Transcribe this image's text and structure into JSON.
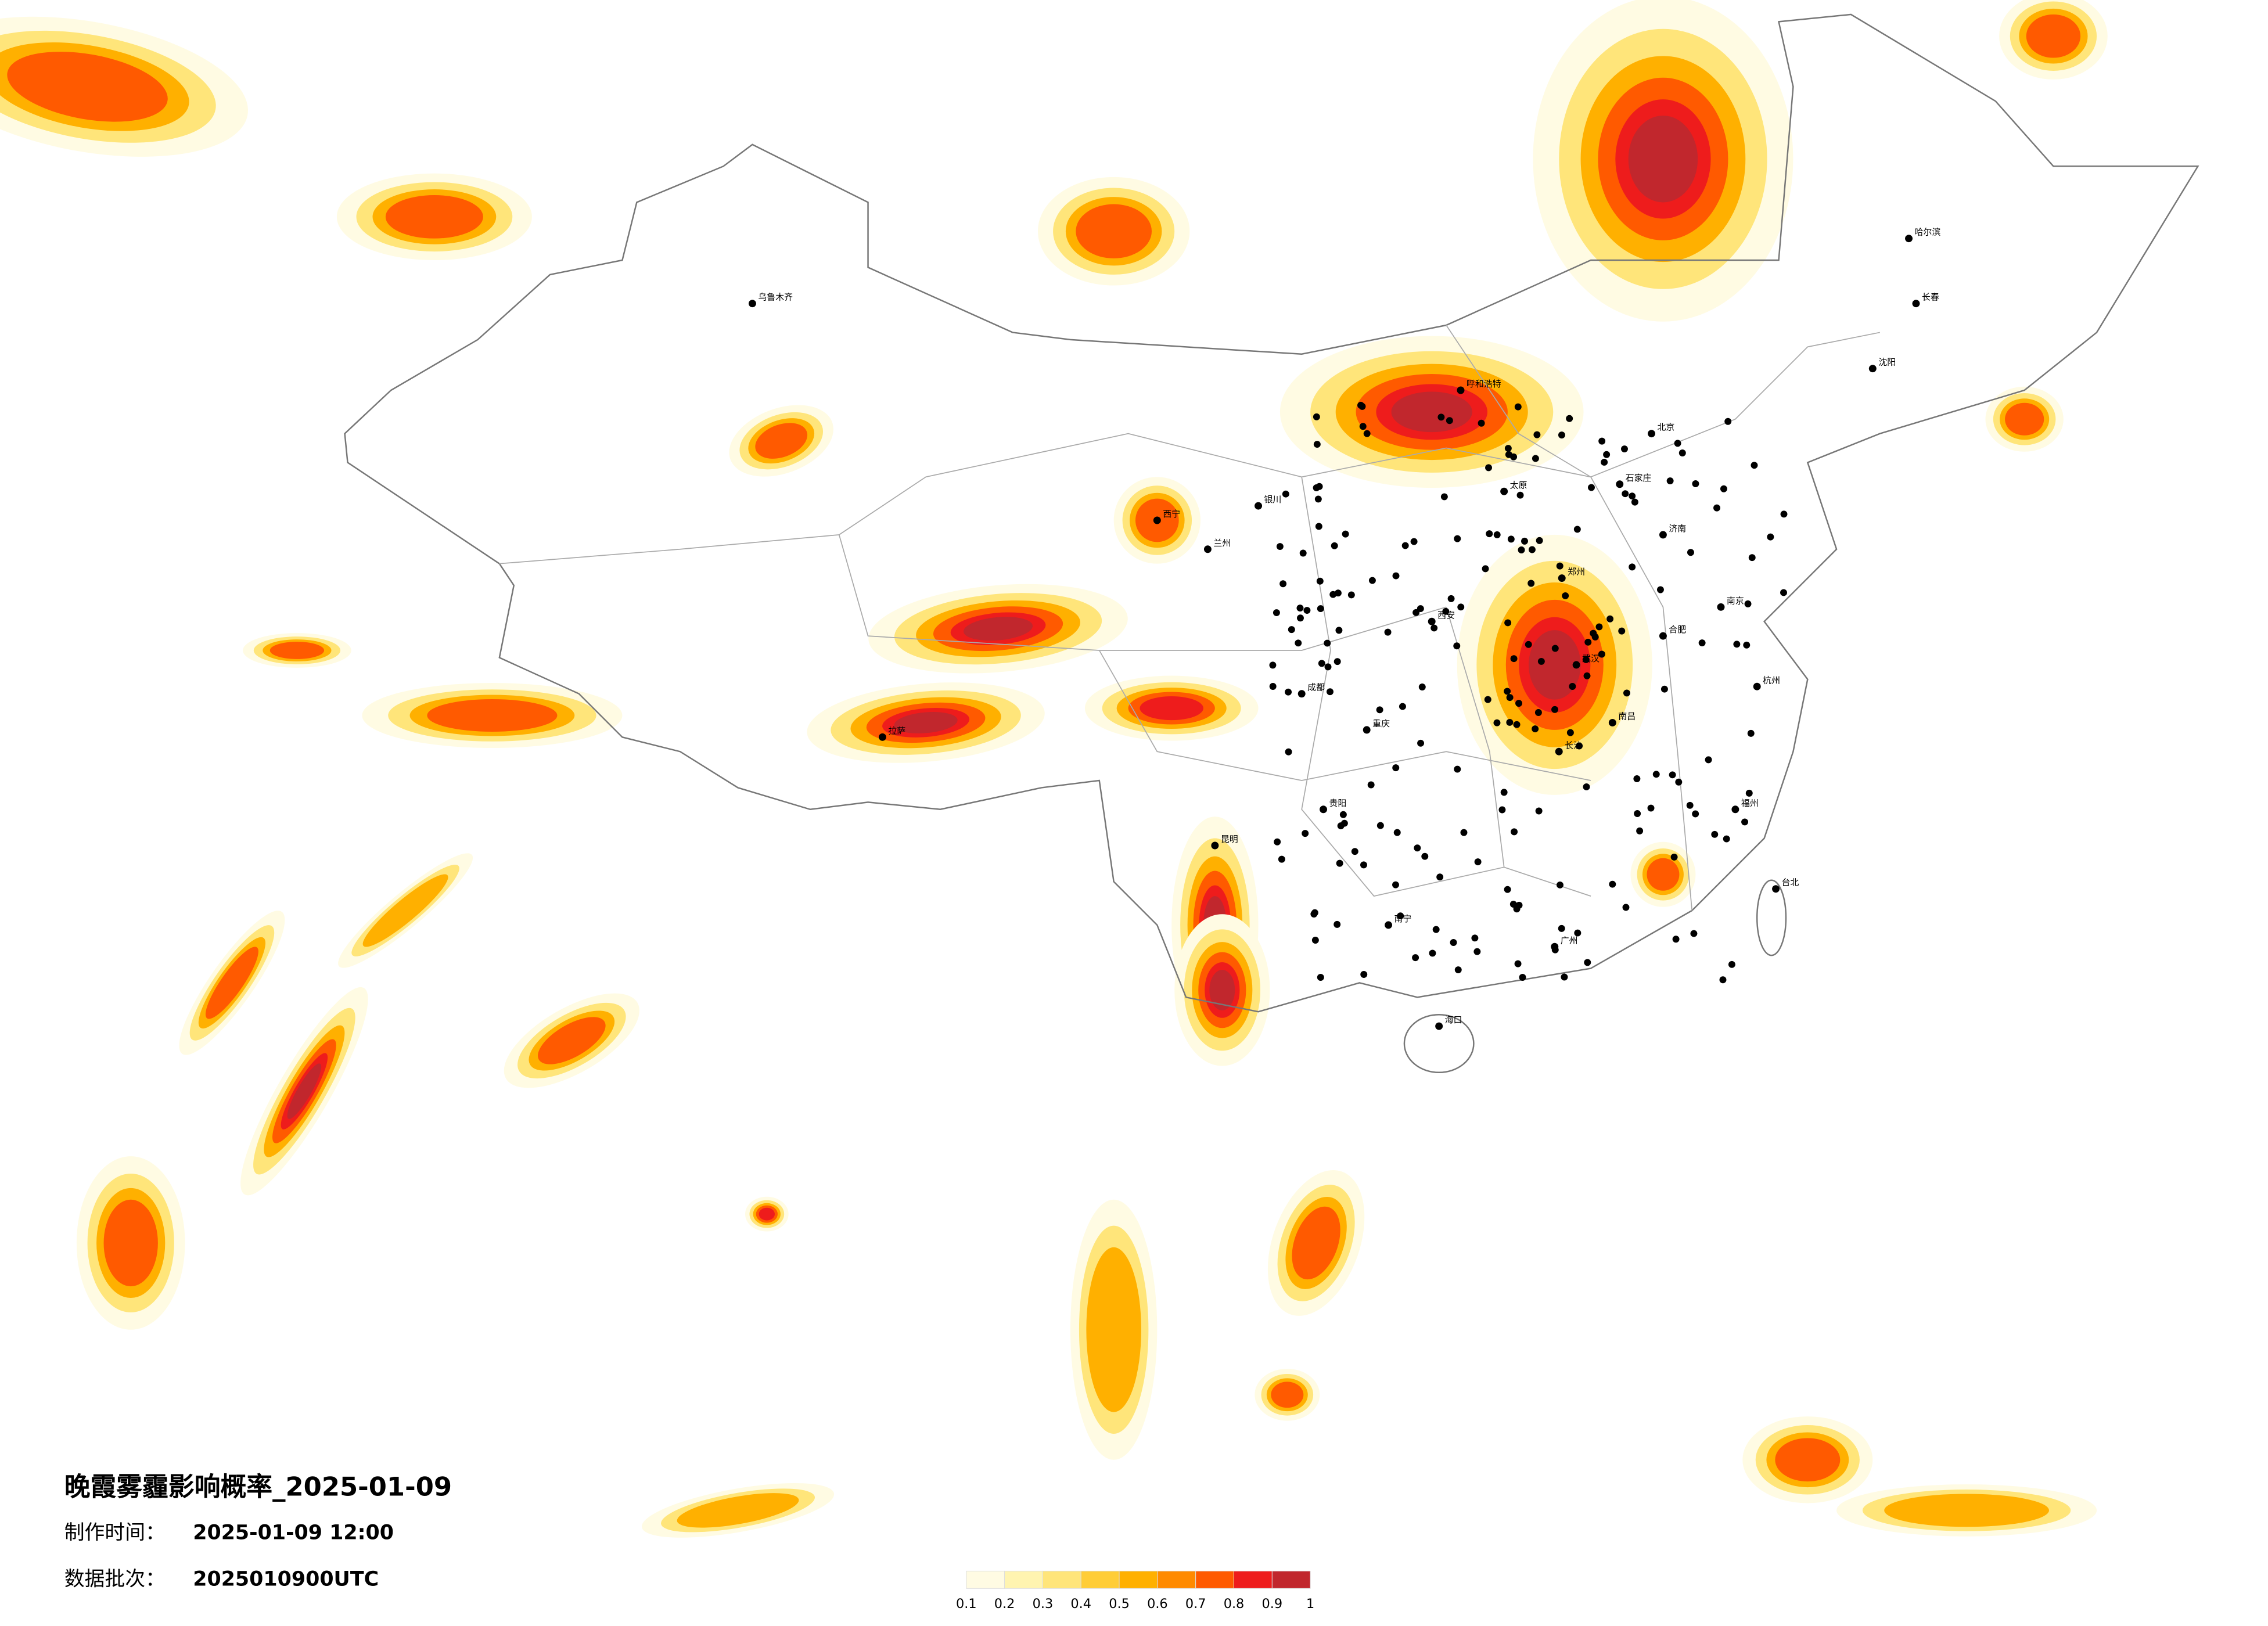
{
  "map": {
    "title": "晚霞雾霾影响概率_2025-01-09",
    "production_time_label": "制作时间：",
    "production_time": "2025-01-09 12:00",
    "batch_label": "数据批次：",
    "batch": "2025010900UTC",
    "legend": {
      "ticks": [
        0.1,
        0.2,
        0.3,
        0.4,
        0.5,
        0.6,
        0.7,
        0.8,
        0.9,
        1
      ],
      "colors": [
        "#fffbe3",
        "#fff4b0",
        "#ffe57a",
        "#ffcd38",
        "#ffb000",
        "#ff8a00",
        "#ff5a00",
        "#ee1c1c",
        "#c1272d"
      ]
    },
    "cities": [
      "北京",
      "石家庄",
      "郑州",
      "武汉",
      "长沙",
      "南昌",
      "合肥",
      "南京",
      "西安",
      "成都",
      "重庆",
      "贵阳",
      "昆明",
      "南宁",
      "广州",
      "福州",
      "海口",
      "拉萨",
      "乌鲁木齐",
      "哈尔滨",
      "长春",
      "沈阳",
      "呼和浩特",
      "兰州",
      "西宁",
      "银川",
      "太原",
      "济南",
      "杭州",
      "台北"
    ]
  }
}
